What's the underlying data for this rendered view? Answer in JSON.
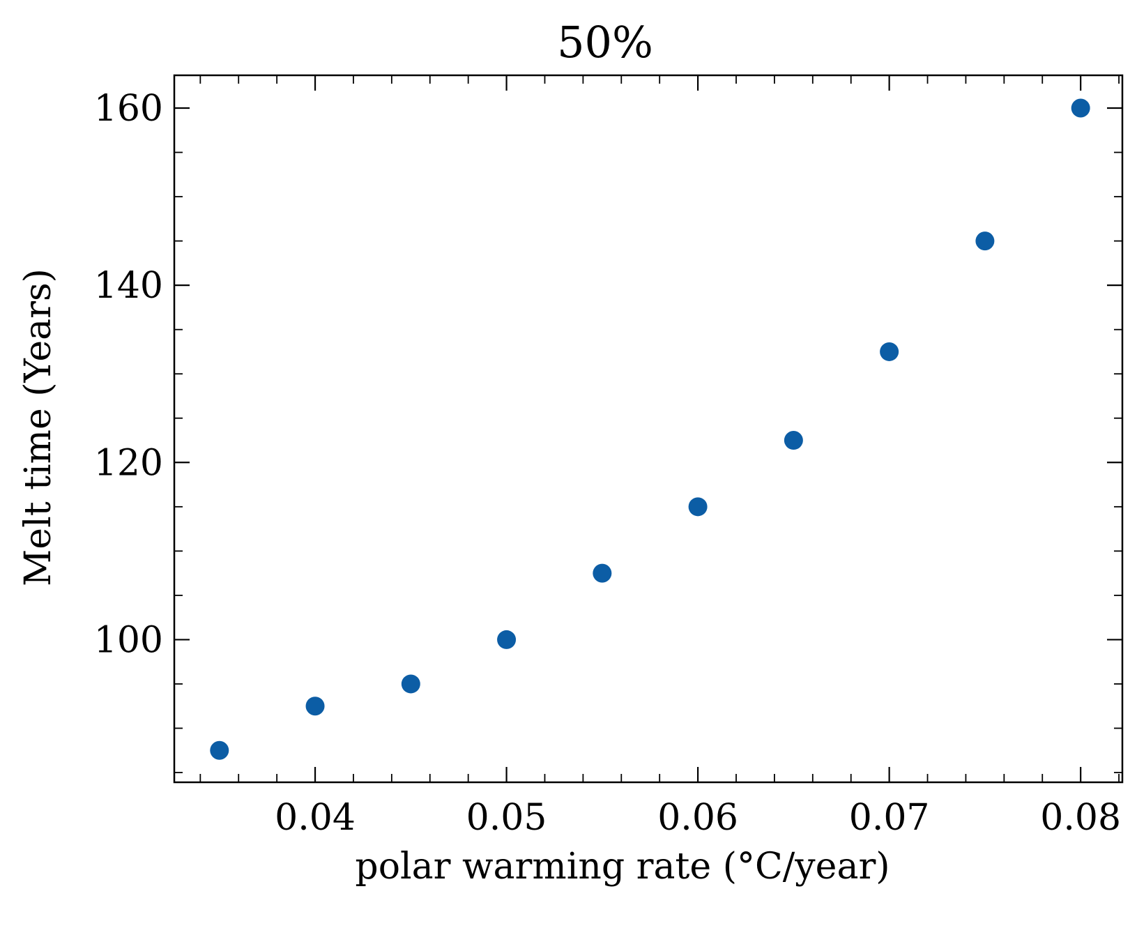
{
  "chart_data": {
    "type": "scatter",
    "title": "50%",
    "xlabel": "polar warming rate (°C/year)",
    "ylabel": "Melt time (Years)",
    "xlim": [
      0.03264,
      0.08218
    ],
    "ylim": [
      83.9,
      163.7
    ],
    "x_ticks": [
      0.04,
      0.05,
      0.06,
      0.07,
      0.08
    ],
    "x_tick_labels": [
      "0.04",
      "0.05",
      "0.06",
      "0.07",
      "0.08"
    ],
    "x_minor_step": 0.002,
    "y_ticks": [
      100,
      120,
      140,
      160
    ],
    "y_tick_labels": [
      "100",
      "120",
      "140",
      "160"
    ],
    "y_minor_step": 5,
    "grid": false,
    "legend": "none",
    "series": [
      {
        "color": "#0c5da5",
        "x": [
          0.035,
          0.04,
          0.045,
          0.05,
          0.055,
          0.06,
          0.065,
          0.07,
          0.075,
          0.08
        ],
        "y": [
          87.5,
          92.5,
          95,
          100,
          107.5,
          115,
          122.5,
          132.5,
          145,
          160
        ]
      }
    ]
  }
}
